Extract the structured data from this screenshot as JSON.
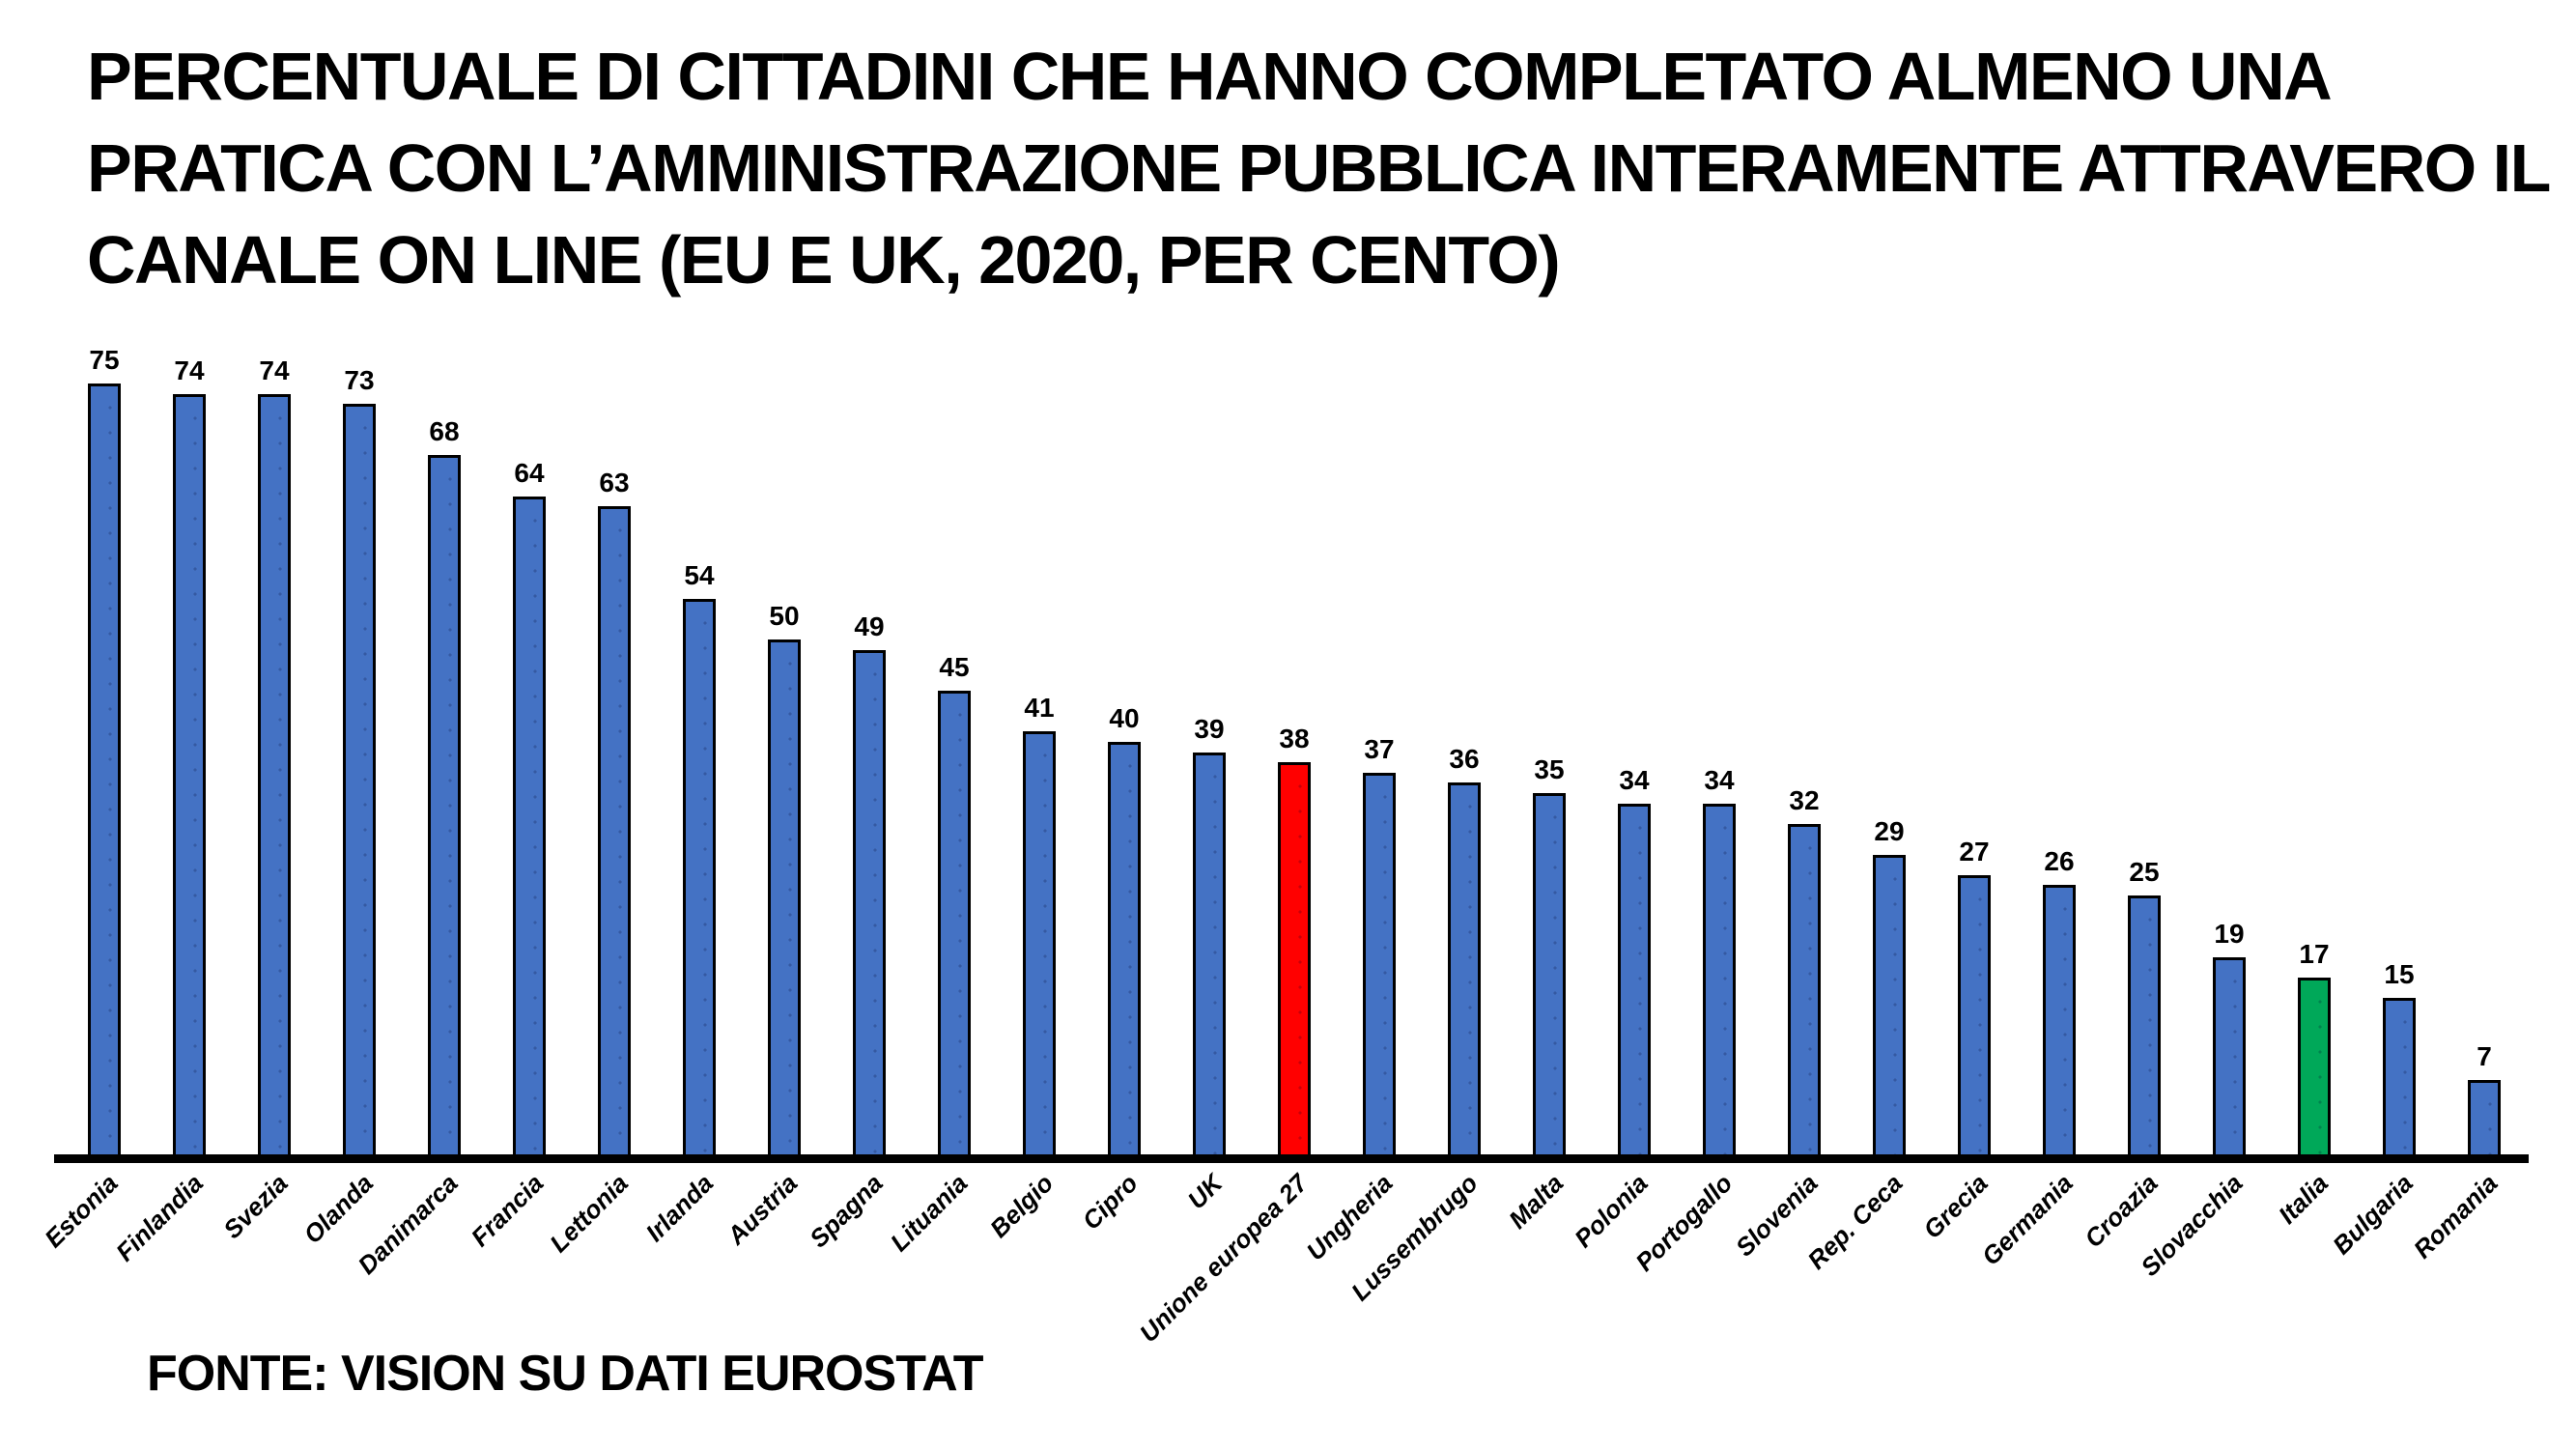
{
  "title": {
    "lines": [
      "PERCENTUALE DI CITTADINI CHE HANNO COMPLETATO ALMENO UNA",
      "PRATICA CON L’AMMINISTRAZIONE PUBBLICA INTERAMENTE ATTRAVERO IL",
      "CANALE ON LINE (EU E UK, 2020, PER CENTO)"
    ]
  },
  "footer": {
    "source": "FONTE: VISION SU DATI EUROSTAT"
  },
  "colors": {
    "bar_default": "#4472C4",
    "bar_border": "#000000",
    "highlight_eu": "#FF0000",
    "highlight_italy": "#00A859",
    "axis": "#000000",
    "background": "#FFFFFF",
    "text": "#000000"
  },
  "chart_data": {
    "type": "bar",
    "title": "PERCENTUALE DI CITTADINI CHE HANNO COMPLETATO ALMENO UNA PRATICA CON L’AMMINISTRAZIONE PUBBLICA INTERAMENTE ATTRAVERO IL CANALE ON LINE (EU E UK, 2020, PER CENTO)",
    "xlabel": "",
    "ylabel": "",
    "ylim": [
      0,
      80
    ],
    "grid": false,
    "legend": false,
    "value_labels": true,
    "category_label_rotation_deg": 45,
    "categories": [
      "Estonia",
      "Finlandia",
      "Svezia",
      "Olanda",
      "Danimarca",
      "Francia",
      "Lettonia",
      "Irlanda",
      "Austria",
      "Spagna",
      "Lituania",
      "Belgio",
      "Cipro",
      "UK",
      "Unione europea 27",
      "Ungheria",
      "Lussembrugo",
      "Malta",
      "Polonia",
      "Portogallo",
      "Slovenia",
      "Rep. Ceca",
      "Grecia",
      "Germania",
      "Croazia",
      "Slovacchia",
      "Italia",
      "Bulgaria",
      "Romania"
    ],
    "values": [
      75,
      74,
      74,
      73,
      68,
      64,
      63,
      54,
      50,
      49,
      45,
      41,
      40,
      39,
      38,
      37,
      36,
      35,
      34,
      34,
      32,
      29,
      27,
      26,
      25,
      19,
      17,
      15,
      7
    ],
    "highlighted_bars": [
      {
        "index": 14,
        "category": "Unione europea 27",
        "value": 38,
        "color": "#FF0000"
      },
      {
        "index": 26,
        "category": "Italia",
        "value": 17,
        "color": "#00A859"
      }
    ],
    "source": "FONTE: VISION SU DATI EUROSTAT"
  }
}
